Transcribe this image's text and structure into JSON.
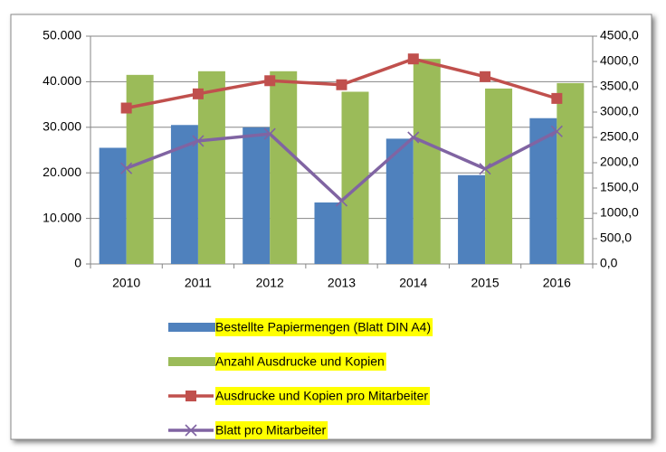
{
  "chart_data": {
    "type": "bar",
    "categories": [
      "2010",
      "2011",
      "2012",
      "2013",
      "2014",
      "2015",
      "2016"
    ],
    "series": [
      {
        "name": "Bestellte Papiermengen (Blatt DIN A4)",
        "color": "#4f81bd",
        "type": "bar",
        "values": [
          25500,
          30500,
          30000,
          13500,
          27500,
          19500,
          32000
        ]
      },
      {
        "name": "Anzahl Ausdrucke und Kopien",
        "color": "#9bbb59",
        "type": "bar",
        "values": [
          41500,
          42300,
          42300,
          37800,
          45000,
          38500,
          39700
        ]
      },
      {
        "name": "Ausdrucke und Kopien pro Mitarbeiter",
        "color": "#c0504d",
        "type": "line",
        "axis": "y2",
        "marker": "square",
        "values": [
          3080,
          3360,
          3620,
          3540,
          4050,
          3700,
          3270
        ]
      },
      {
        "name": "Blatt pro Mitarbeiter",
        "color": "#8064a2",
        "type": "line",
        "axis": "y2",
        "marker": "x",
        "values": [
          1890,
          2430,
          2570,
          1250,
          2500,
          1880,
          2620
        ]
      }
    ],
    "ylim": [
      0,
      50000
    ],
    "yticks": [
      0,
      {
        "value": 10000,
        "label": "10.000"
      },
      {
        "value": 20000,
        "label": "20.000"
      },
      {
        "value": 30000,
        "label": "30.000"
      },
      {
        "value": 40000,
        "label": "40.000"
      },
      {
        "value": 50000,
        "label": "50.000"
      }
    ],
    "y2lim": [
      0,
      4500
    ],
    "y2ticks": [
      {
        "value": 0,
        "label": "0,0"
      },
      {
        "value": 500,
        "label": "500,0"
      },
      {
        "value": 1000,
        "label": "1000,0"
      },
      {
        "value": 1500,
        "label": "1500,0"
      },
      {
        "value": 2000,
        "label": "2000,0"
      },
      {
        "value": 2500,
        "label": "2500,0"
      },
      {
        "value": 3000,
        "label": "3000,0"
      },
      {
        "value": 3500,
        "label": "3500,0"
      },
      {
        "value": 4000,
        "label": "4000,0"
      },
      {
        "value": 4500,
        "label": "4500,0"
      }
    ],
    "grid": true,
    "legend": "bottom"
  }
}
